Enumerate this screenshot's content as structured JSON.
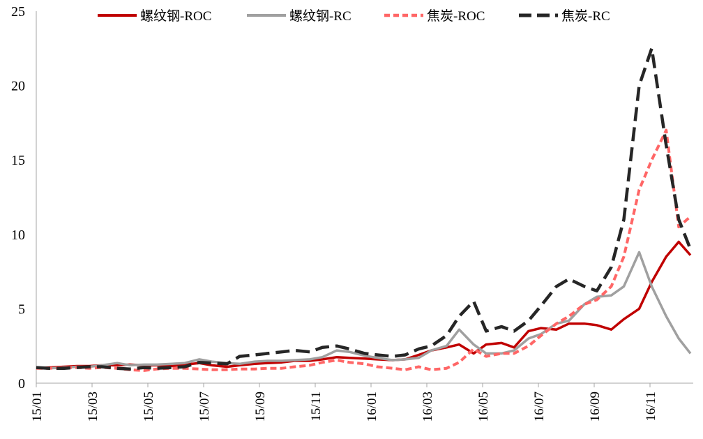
{
  "chart_data": {
    "type": "line",
    "title": "",
    "xlabel": "",
    "ylabel": "",
    "ylim": [
      0,
      25
    ],
    "yticks": [
      0,
      5,
      10,
      15,
      20,
      25
    ],
    "xlim": [
      "2015-01-01",
      "2016-12-28"
    ],
    "xtick_labels": [
      "15/01",
      "15/03",
      "15/05",
      "15/07",
      "15/09",
      "15/11",
      "16/01",
      "16/03",
      "16/05",
      "16/07",
      "16/09",
      "16/11"
    ],
    "grid": false,
    "legend_placement": "top",
    "x": [
      "2015-01-01",
      "2015-01-15",
      "2015-02-01",
      "2015-02-15",
      "2015-03-01",
      "2015-03-15",
      "2015-04-01",
      "2015-04-15",
      "2015-05-01",
      "2015-05-15",
      "2015-06-01",
      "2015-06-15",
      "2015-07-01",
      "2015-07-15",
      "2015-08-01",
      "2015-08-15",
      "2015-09-01",
      "2015-09-15",
      "2015-10-01",
      "2015-10-15",
      "2015-11-01",
      "2015-11-15",
      "2015-12-01",
      "2015-12-15",
      "2016-01-01",
      "2016-01-15",
      "2016-02-01",
      "2016-02-15",
      "2016-03-01",
      "2016-03-15",
      "2016-04-01",
      "2016-04-15",
      "2016-05-01",
      "2016-05-15",
      "2016-06-01",
      "2016-06-15",
      "2016-07-01",
      "2016-07-15",
      "2016-08-01",
      "2016-08-15",
      "2016-09-01",
      "2016-09-15",
      "2016-10-01",
      "2016-10-15",
      "2016-11-01",
      "2016-11-15",
      "2016-12-01",
      "2016-12-15",
      "2016-12-28"
    ],
    "series": [
      {
        "name": "螺纹钢-ROC",
        "color": "#c00000",
        "style": "solid",
        "values": [
          1.0,
          1.05,
          1.1,
          1.15,
          1.15,
          1.2,
          1.2,
          1.25,
          1.2,
          1.2,
          1.15,
          1.25,
          1.35,
          1.2,
          1.1,
          1.2,
          1.3,
          1.35,
          1.4,
          1.5,
          1.5,
          1.6,
          1.75,
          1.7,
          1.65,
          1.6,
          1.55,
          1.6,
          1.9,
          2.2,
          2.4,
          2.6,
          2.0,
          2.6,
          2.7,
          2.4,
          3.5,
          3.7,
          3.6,
          4.0,
          4.0,
          3.9,
          3.6,
          4.3,
          5.0,
          6.8,
          8.5,
          9.5,
          8.6
        ]
      },
      {
        "name": "螺纹钢-RC",
        "color": "#a0a0a0",
        "style": "solid",
        "values": [
          1.05,
          1.0,
          1.05,
          1.1,
          1.1,
          1.2,
          1.35,
          1.2,
          1.25,
          1.25,
          1.3,
          1.35,
          1.6,
          1.45,
          1.35,
          1.3,
          1.45,
          1.5,
          1.5,
          1.55,
          1.6,
          1.75,
          2.2,
          2.1,
          1.85,
          1.7,
          1.55,
          1.6,
          1.7,
          2.2,
          2.5,
          3.6,
          2.6,
          2.0,
          2.0,
          2.2,
          3.0,
          3.3,
          4.0,
          4.2,
          5.3,
          5.8,
          5.9,
          6.5,
          8.8,
          6.5,
          4.5,
          3.0,
          2.0
        ]
      },
      {
        "name": "焦炭-ROC",
        "color": "#ff6666",
        "style": "dashed",
        "values": [
          1.0,
          1.0,
          1.05,
          1.05,
          1.0,
          1.05,
          1.0,
          0.9,
          0.85,
          0.95,
          1.0,
          1.0,
          0.95,
          0.9,
          0.9,
          0.95,
          0.95,
          1.0,
          1.0,
          1.1,
          1.2,
          1.4,
          1.55,
          1.4,
          1.3,
          1.1,
          1.0,
          0.9,
          1.1,
          0.9,
          1.0,
          1.4,
          2.3,
          1.8,
          2.0,
          2.0,
          2.5,
          3.2,
          4.0,
          4.5,
          5.3,
          5.6,
          6.5,
          8.5,
          13.0,
          15.0,
          17.0,
          10.5,
          11.2
        ]
      },
      {
        "name": "焦炭-RC",
        "color": "#262626",
        "style": "longdash",
        "values": [
          1.05,
          1.0,
          1.0,
          1.05,
          1.1,
          1.1,
          1.0,
          0.95,
          1.05,
          1.0,
          1.05,
          1.1,
          1.4,
          1.35,
          1.3,
          1.8,
          1.9,
          2.0,
          2.1,
          2.2,
          2.1,
          2.4,
          2.5,
          2.3,
          2.0,
          1.9,
          1.8,
          1.9,
          2.3,
          2.5,
          3.2,
          4.5,
          5.5,
          3.5,
          3.8,
          3.5,
          4.2,
          5.2,
          6.5,
          7.0,
          6.5,
          6.2,
          7.8,
          11.0,
          20.0,
          22.5,
          16.0,
          11.0,
          9.0
        ]
      }
    ]
  }
}
